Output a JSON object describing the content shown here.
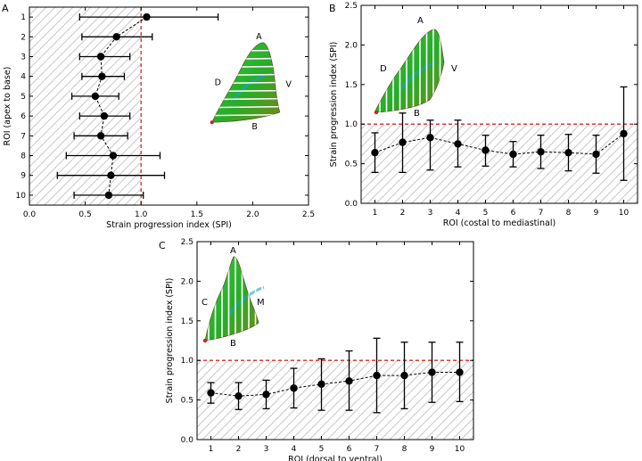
{
  "chart_data": [
    {
      "panel": "A",
      "type": "scatter",
      "orientation": "horizontal",
      "title": "",
      "xlabel": "Strain progression index (SPI)",
      "ylabel": "ROI (apex to base)",
      "xlim": [
        0.0,
        2.5
      ],
      "ylim": [
        0.5,
        10.5
      ],
      "xticks": [
        "0.0",
        "0.5",
        "1.0",
        "1.5",
        "2.0",
        "2.5"
      ],
      "yticks": [
        "1",
        "2",
        "3",
        "4",
        "5",
        "6",
        "7",
        "8",
        "9",
        "10"
      ],
      "reference_line": 1.0,
      "roi": [
        1,
        2,
        3,
        4,
        5,
        6,
        7,
        8,
        9,
        10
      ],
      "values": [
        1.05,
        0.78,
        0.64,
        0.65,
        0.59,
        0.67,
        0.64,
        0.75,
        0.73,
        0.71
      ],
      "err_low": [
        0.45,
        0.47,
        0.45,
        0.47,
        0.38,
        0.45,
        0.4,
        0.33,
        0.25,
        0.4
      ],
      "err_high": [
        1.69,
        1.1,
        0.9,
        0.85,
        0.8,
        0.9,
        0.88,
        1.17,
        1.21,
        1.02
      ],
      "shape_labels": [
        "A",
        "D",
        "V",
        "B"
      ]
    },
    {
      "panel": "B",
      "type": "scatter",
      "title": "",
      "xlabel": "ROI (costal to mediastinal)",
      "ylabel": "Strain progression index (SPI)",
      "xlim": [
        0.5,
        10.5
      ],
      "ylim": [
        0.0,
        2.5
      ],
      "xticks": [
        "1",
        "2",
        "3",
        "4",
        "5",
        "6",
        "7",
        "8",
        "9",
        "10"
      ],
      "yticks": [
        "0.0",
        "0.5",
        "1.0",
        "1.5",
        "2.0",
        "2.5"
      ],
      "reference_line": 1.0,
      "roi": [
        1,
        2,
        3,
        4,
        5,
        6,
        7,
        8,
        9,
        10
      ],
      "values": [
        0.64,
        0.77,
        0.83,
        0.75,
        0.67,
        0.62,
        0.65,
        0.64,
        0.62,
        0.88
      ],
      "err_low": [
        0.39,
        0.39,
        0.42,
        0.46,
        0.47,
        0.46,
        0.44,
        0.41,
        0.38,
        0.29
      ],
      "err_high": [
        0.89,
        1.14,
        1.05,
        1.05,
        0.86,
        0.78,
        0.86,
        0.87,
        0.86,
        1.47
      ],
      "shape_labels": [
        "A",
        "D",
        "V",
        "B"
      ]
    },
    {
      "panel": "C",
      "type": "scatter",
      "title": "",
      "xlabel": "ROI (dorsal to ventral)",
      "ylabel": "Strain progression index (SPI)",
      "xlim": [
        0.5,
        10.5
      ],
      "ylim": [
        0.0,
        2.5
      ],
      "xticks": [
        "1",
        "2",
        "3",
        "4",
        "5",
        "6",
        "7",
        "8",
        "9",
        "10"
      ],
      "yticks": [
        "0.0",
        "0.5",
        "1.0",
        "1.5",
        "2.0",
        "2.5"
      ],
      "reference_line": 1.0,
      "roi": [
        1,
        2,
        3,
        4,
        5,
        6,
        7,
        8,
        9,
        10
      ],
      "values": [
        0.59,
        0.55,
        0.57,
        0.65,
        0.7,
        0.74,
        0.81,
        0.81,
        0.85,
        0.85
      ],
      "err_low": [
        0.46,
        0.38,
        0.39,
        0.4,
        0.37,
        0.37,
        0.34,
        0.39,
        0.47,
        0.48
      ],
      "err_high": [
        0.72,
        0.72,
        0.75,
        0.9,
        1.02,
        1.12,
        1.28,
        1.23,
        1.23,
        1.23
      ],
      "shape_labels": [
        "A",
        "C",
        "M",
        "B"
      ]
    }
  ],
  "colors": {
    "reference_line": "#d62728",
    "markers": "#000000",
    "hatch": "#c8c8c8",
    "shape_fill": "#2db82d",
    "shape_accent": "#1a9fd0"
  }
}
